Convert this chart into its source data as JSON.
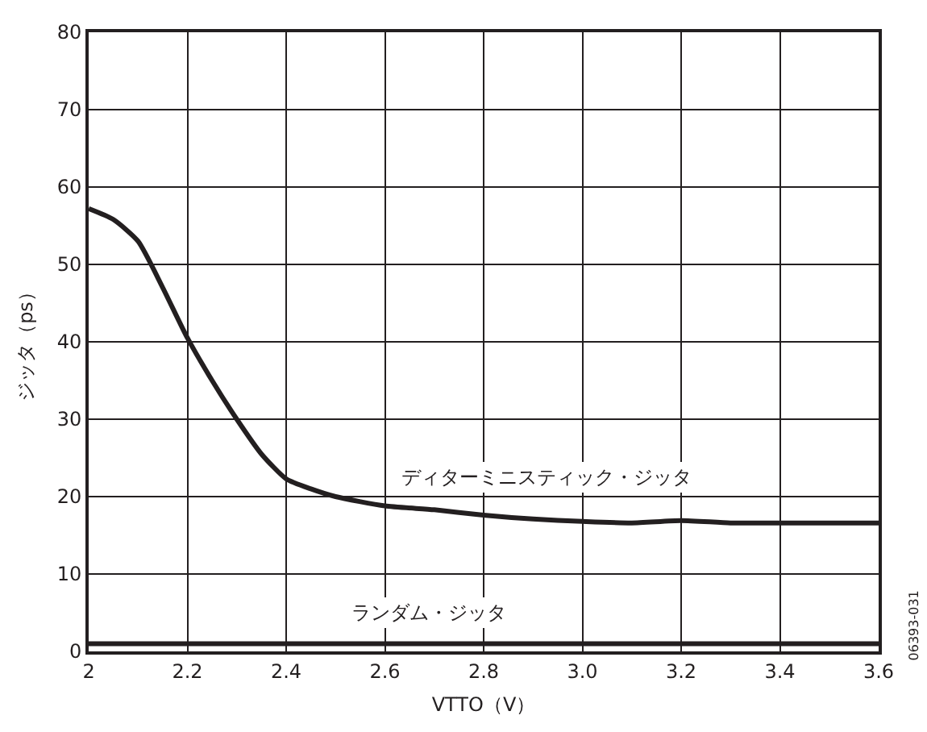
{
  "chart_data": {
    "type": "line",
    "xlabel": "VTTO（V）",
    "ylabel": "ジッタ（ps）",
    "x": [
      2,
      2.05,
      2.1,
      2.15,
      2.2,
      2.25,
      2.3,
      2.35,
      2.4,
      2.45,
      2.5,
      2.6,
      2.7,
      2.8,
      2.9,
      3.0,
      3.1,
      3.2,
      3.3,
      3.4,
      3.5,
      3.6
    ],
    "series": [
      {
        "name": "ディターミニスティック・ジッタ",
        "color": "#231f20",
        "values": [
          57.2,
          55.8,
          53,
          47,
          40.5,
          35,
          30,
          25.5,
          22.3,
          21,
          20,
          18.8,
          18.3,
          17.6,
          17.1,
          16.8,
          16.6,
          16.9,
          16.6,
          16.6,
          16.6,
          16.6
        ]
      },
      {
        "name": "ランダム・ジッタ",
        "color": "#231f20",
        "values": [
          1,
          1,
          1,
          1,
          1,
          1,
          1,
          1,
          1,
          1,
          1,
          1,
          1,
          1,
          1,
          1,
          1,
          1,
          1,
          1,
          1,
          1
        ]
      }
    ],
    "xlim": [
      2,
      3.6
    ],
    "xticks": [
      2,
      2.2,
      2.4,
      2.6,
      2.8,
      {
        "value": 3,
        "label": "3.0"
      },
      3.2,
      3.4,
      3.6
    ],
    "ylim": [
      0,
      80
    ],
    "yticks": [
      0,
      10,
      20,
      30,
      40,
      50,
      60,
      70,
      80
    ],
    "grid": true,
    "legend": false,
    "marker": "none",
    "line_style": "solid",
    "annotations": [
      "06393-031"
    ]
  }
}
